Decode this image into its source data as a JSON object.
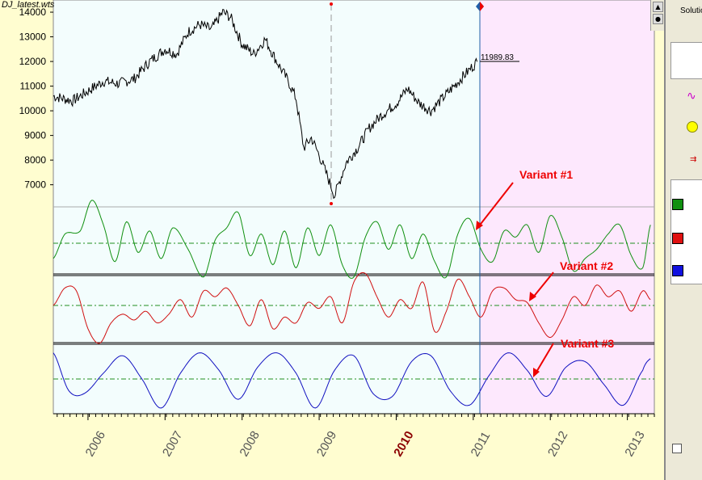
{
  "file_label": "DJ_latest.wts",
  "last_value_label": "11989.83",
  "current_year_highlight": "2010",
  "colors": {
    "price": "#000000",
    "variant1": "#109010",
    "variant2": "#d01010",
    "variant3": "#1010c0",
    "annotation": "#e00000",
    "zero_line": "#209020",
    "future_bg": "#fde8fd",
    "past_bg": "#f3fdfd",
    "cursor": "#1f5fa8",
    "page_bg": "#fffdd0"
  },
  "annotations": [
    {
      "text": "Variant #1"
    },
    {
      "text": "Variant #2"
    },
    {
      "text": "Variant #3"
    }
  ],
  "right_panel": {
    "solutions_label": "Solutio",
    "swatches": [
      "green-swatch",
      "red-swatch",
      "blue-swatch"
    ]
  },
  "chart_data": [
    {
      "type": "line",
      "title": "",
      "x_ticks": [
        "2006",
        "2007",
        "2008",
        "2009",
        "2010",
        "2011",
        "2012",
        "2013"
      ],
      "yticks": [
        7000,
        8000,
        9000,
        10000,
        11000,
        12000,
        13000,
        14000
      ],
      "ylim": [
        6300,
        14100
      ],
      "series": [
        {
          "x": [
            2005.55,
            2005.8,
            2006.0,
            2006.2,
            2006.4,
            2006.6,
            2006.8,
            2007.0,
            2007.15,
            2007.3,
            2007.45,
            2007.6,
            2007.75,
            2007.85,
            2008.0,
            2008.15,
            2008.3,
            2008.45,
            2008.6,
            2008.7,
            2008.8,
            2008.9,
            2009.0,
            2009.1,
            2009.2,
            2009.35,
            2009.5,
            2009.65,
            2009.8,
            2010.0,
            2010.15,
            2010.3,
            2010.45,
            2010.6,
            2010.75,
            2010.9,
            2011.05
          ],
          "values": [
            10600,
            10400,
            10800,
            11200,
            11100,
            11300,
            12000,
            12500,
            12300,
            13200,
            13500,
            13300,
            14000,
            13800,
            12700,
            12300,
            12900,
            12000,
            11200,
            10500,
            8500,
            8900,
            8200,
            7400,
            6550,
            7900,
            8500,
            9300,
            9800,
            10300,
            10900,
            10300,
            10000,
            10500,
            11000,
            11500,
            11990
          ]
        }
      ]
    },
    {
      "type": "line",
      "title": "Variant #1",
      "series": [
        {
          "name": "Variant #1",
          "x": [
            2005.55,
            2005.7,
            2005.9,
            2006.05,
            2006.2,
            2006.35,
            2006.5,
            2006.65,
            2006.8,
            2006.95,
            2007.1,
            2007.3,
            2007.5,
            2007.65,
            2007.8,
            2007.95,
            2008.1,
            2008.25,
            2008.4,
            2008.55,
            2008.7,
            2008.85,
            2009.0,
            2009.15,
            2009.3,
            2009.45,
            2009.6,
            2009.75,
            2009.9,
            2010.05,
            2010.2,
            2010.35,
            2010.5,
            2010.65,
            2010.8,
            2010.95,
            2011.1,
            2011.25,
            2011.4,
            2011.55,
            2011.7,
            2011.85,
            2012.0,
            2012.15,
            2012.3,
            2012.45,
            2012.6,
            2012.75,
            2012.9,
            2013.05,
            2013.2,
            2013.3
          ],
          "values": [
            -0.5,
            0.3,
            0.4,
            1.4,
            0.6,
            -0.6,
            0.7,
            -0.3,
            0.4,
            -0.5,
            0.5,
            -0.2,
            -1.1,
            0.1,
            0.5,
            1.0,
            -0.4,
            0.3,
            -0.7,
            0.4,
            -0.8,
            0.5,
            -0.4,
            0.6,
            -0.7,
            -1.1,
            0.2,
            0.7,
            -0.2,
            0.6,
            -0.5,
            0.3,
            -0.6,
            -1.1,
            0.3,
            0.8,
            -0.2,
            -0.6,
            0.4,
            0.2,
            0.6,
            -0.3,
            0.9,
            0.2,
            -0.9,
            -0.5,
            -0.2,
            0.3,
            0.6,
            -0.4,
            -0.8,
            0.6
          ]
        }
      ]
    },
    {
      "type": "line",
      "title": "Variant #2",
      "series": [
        {
          "name": "Variant #2",
          "x": [
            2005.55,
            2005.7,
            2005.85,
            2006.0,
            2006.15,
            2006.3,
            2006.45,
            2006.6,
            2006.75,
            2006.9,
            2007.05,
            2007.2,
            2007.35,
            2007.5,
            2007.65,
            2007.8,
            2007.95,
            2008.1,
            2008.25,
            2008.4,
            2008.55,
            2008.7,
            2008.85,
            2009.0,
            2009.15,
            2009.3,
            2009.45,
            2009.6,
            2009.75,
            2009.9,
            2010.05,
            2010.2,
            2010.35,
            2010.5,
            2010.65,
            2010.8,
            2010.95,
            2011.1,
            2011.25,
            2011.4,
            2011.55,
            2011.7,
            2011.85,
            2012.0,
            2012.15,
            2012.3,
            2012.45,
            2012.6,
            2012.75,
            2012.9,
            2013.05,
            2013.2,
            2013.3
          ],
          "values": [
            0.0,
            0.6,
            0.5,
            -0.8,
            -1.3,
            -0.6,
            -0.3,
            -0.5,
            -0.2,
            -0.6,
            -0.3,
            0.2,
            -0.4,
            0.5,
            0.3,
            0.6,
            0.0,
            -0.7,
            0.2,
            -0.8,
            -0.4,
            -0.6,
            0.1,
            -0.1,
            0.3,
            -0.6,
            0.8,
            1.1,
            0.3,
            -0.4,
            0.2,
            -0.1,
            0.8,
            -0.9,
            -0.2,
            0.9,
            0.3,
            -0.4,
            0.5,
            0.6,
            0.2,
            0.1,
            -0.6,
            -1.1,
            -0.5,
            0.3,
            0.0,
            0.7,
            0.3,
            0.5,
            -0.2,
            0.5,
            0.2
          ]
        }
      ]
    },
    {
      "type": "line",
      "title": "Variant #3",
      "series": [
        {
          "name": "Variant #3",
          "x": [
            2005.55,
            2005.75,
            2005.95,
            2006.2,
            2006.45,
            2006.7,
            2006.95,
            2007.2,
            2007.45,
            2007.7,
            2007.95,
            2008.2,
            2008.45,
            2008.7,
            2008.95,
            2009.2,
            2009.45,
            2009.7,
            2009.95,
            2010.2,
            2010.45,
            2010.7,
            2010.95,
            2011.2,
            2011.45,
            2011.7,
            2011.95,
            2012.2,
            2012.45,
            2012.7,
            2012.95,
            2013.2,
            2013.3
          ],
          "values": [
            0.9,
            -0.4,
            -0.5,
            0.2,
            0.8,
            0.0,
            -1.0,
            0.2,
            0.9,
            0.3,
            -0.7,
            0.4,
            0.9,
            0.2,
            -1.0,
            0.3,
            0.8,
            -0.5,
            -0.6,
            0.6,
            0.8,
            -0.4,
            -0.9,
            0.1,
            0.9,
            0.3,
            -0.6,
            0.4,
            0.6,
            -0.2,
            -0.9,
            0.3,
            0.7
          ]
        }
      ]
    }
  ]
}
